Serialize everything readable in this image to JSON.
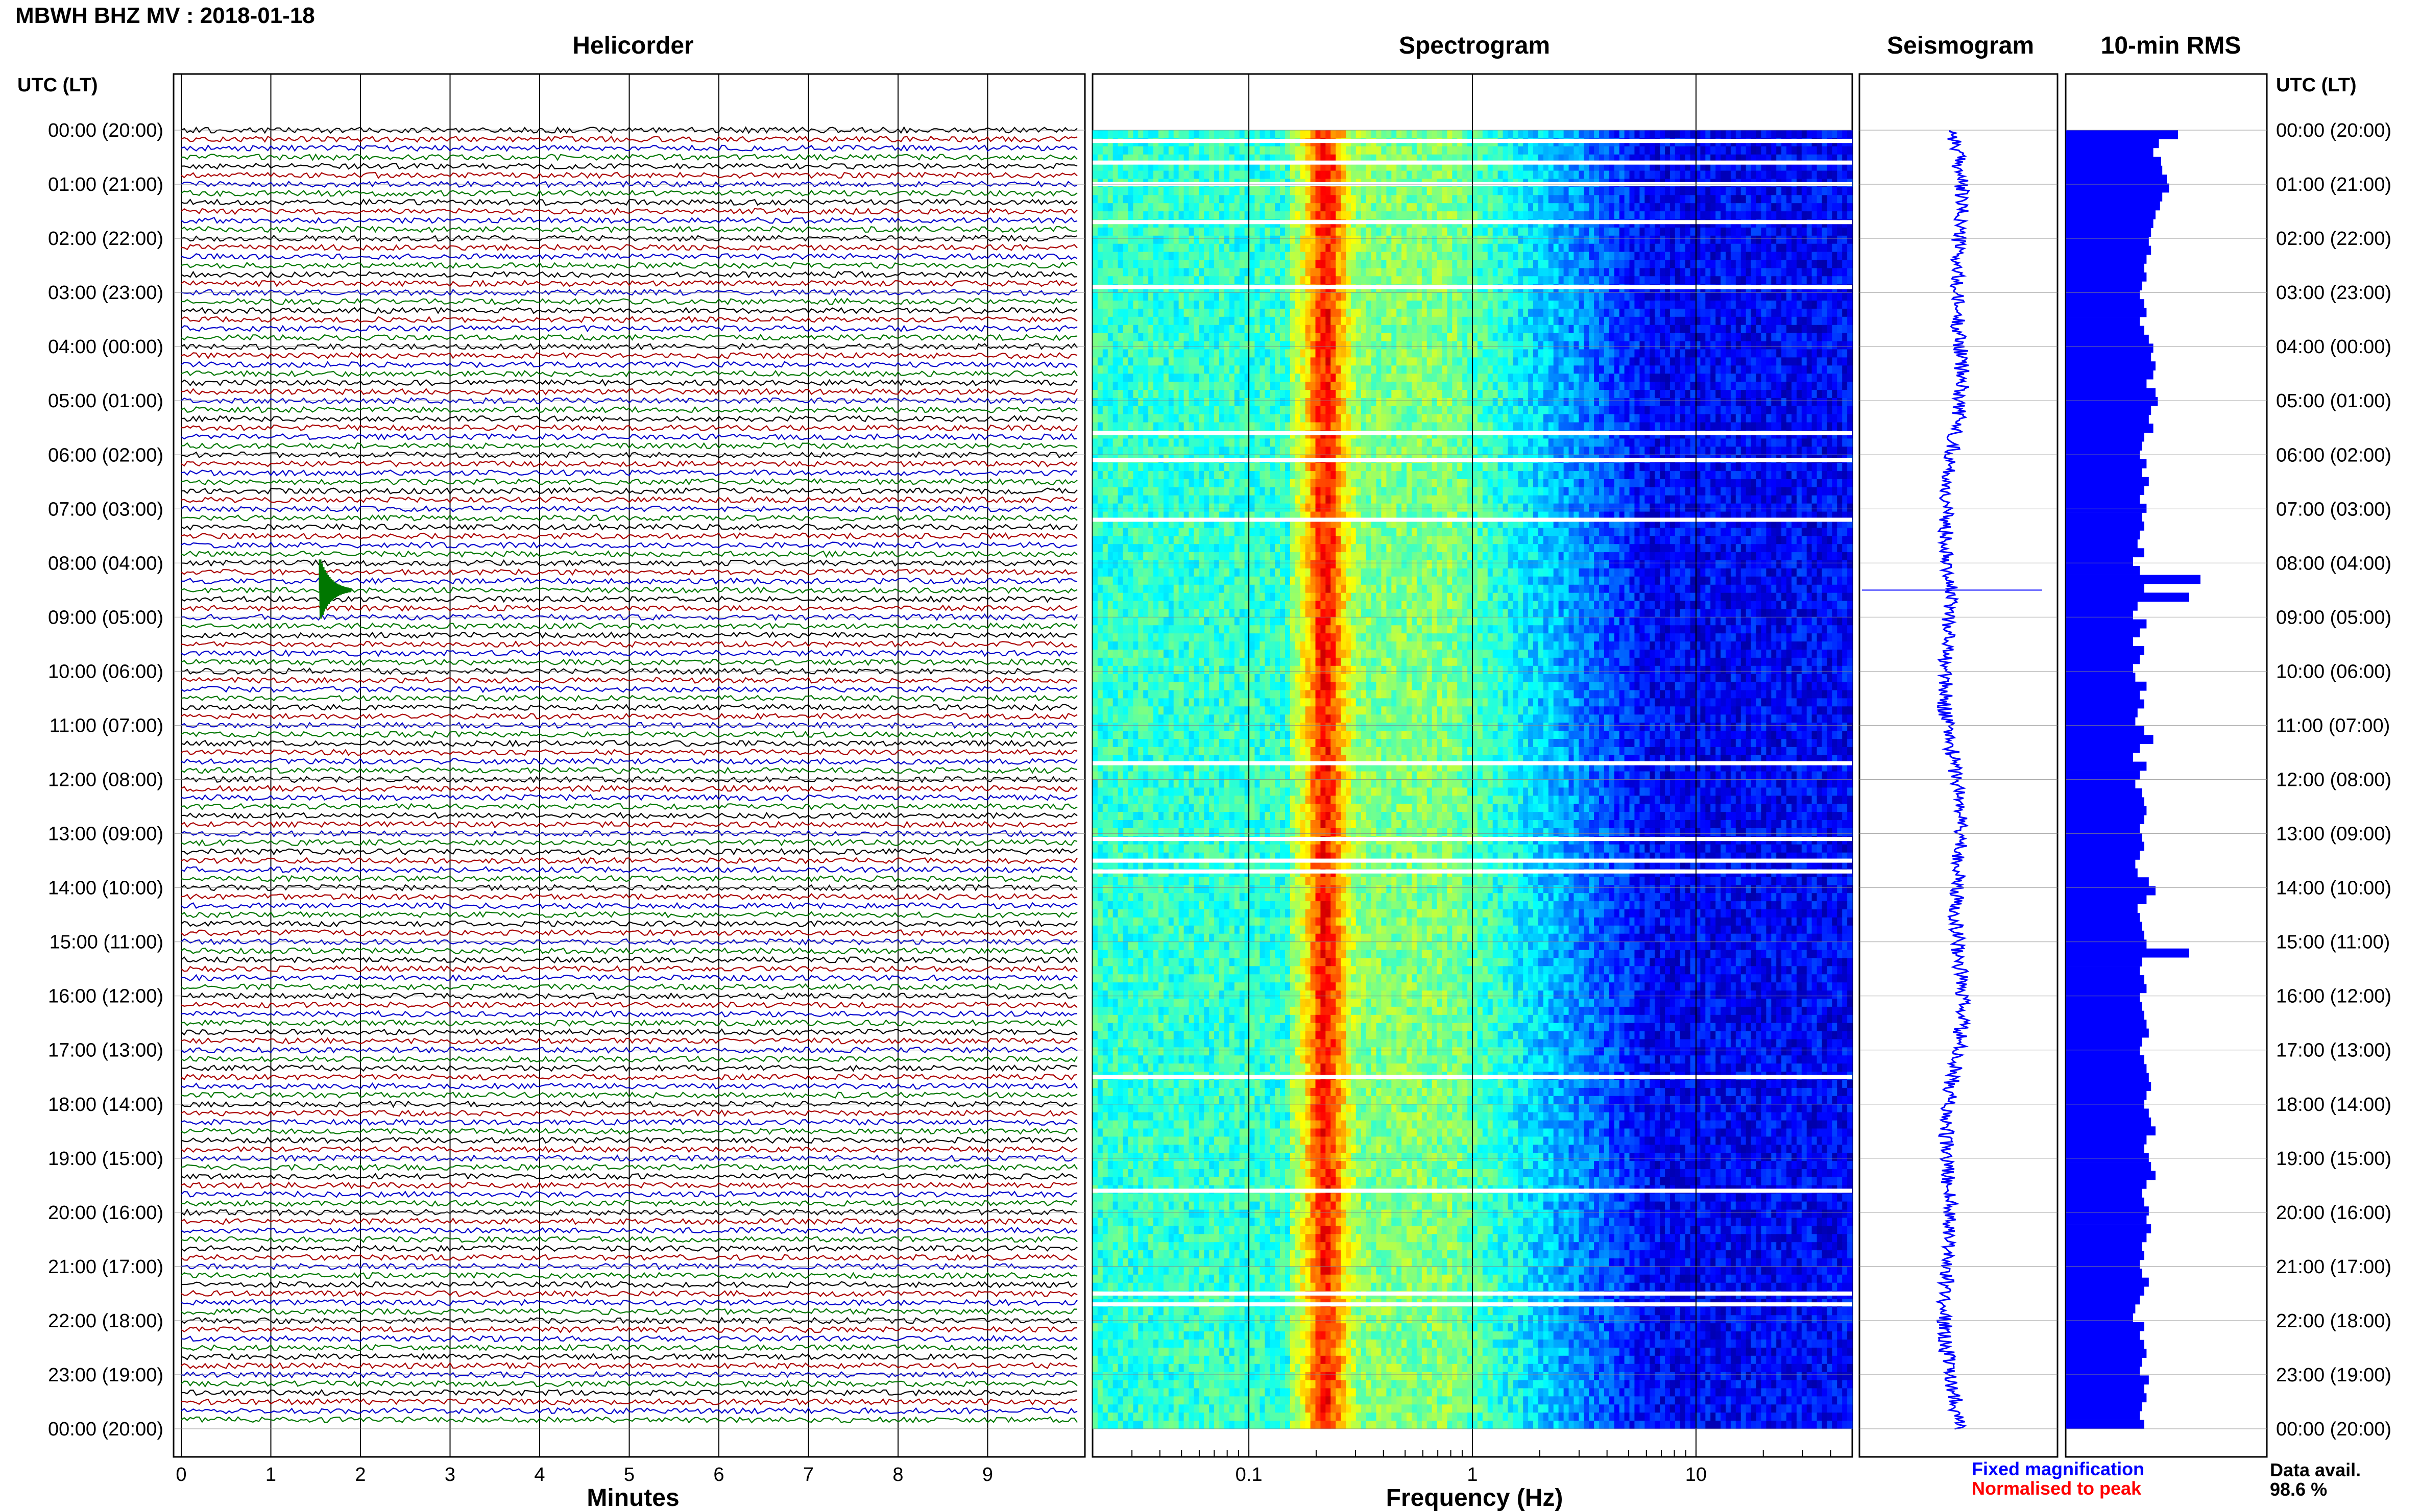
{
  "station_title": "MBWH BHZ MV : 2018-01-18",
  "panels": {
    "helicorder": "Helicorder",
    "spectrogram": "Spectrogram",
    "seismogram": "Seismogram",
    "rms": "10-min RMS"
  },
  "time_axis_label": "UTC (LT)",
  "legend": {
    "fixed": "Fixed magnification",
    "normalised": "Normalised to peak",
    "fixed_color": "#0000ff",
    "normalised_color": "#ff0000"
  },
  "data_avail": {
    "label": "Data avail.",
    "value": "98.6 %"
  },
  "chart_data": [
    {
      "type": "line",
      "title": "Helicorder",
      "xlabel": "Minutes",
      "xticks": [
        "0",
        "1",
        "2",
        "3",
        "4",
        "5",
        "6",
        "7",
        "8",
        "9"
      ],
      "xlim": [
        0,
        10
      ],
      "y_tick_labels": [
        "00:00 (20:00)",
        "01:00 (21:00)",
        "02:00 (22:00)",
        "03:00 (23:00)",
        "04:00 (00:00)",
        "05:00 (01:00)",
        "06:00 (02:00)",
        "07:00 (03:00)",
        "08:00 (04:00)",
        "09:00 (05:00)",
        "10:00 (06:00)",
        "11:00 (07:00)",
        "12:00 (08:00)",
        "13:00 (09:00)",
        "14:00 (10:00)",
        "15:00 (11:00)",
        "16:00 (12:00)",
        "17:00 (13:00)",
        "18:00 (14:00)",
        "19:00 (15:00)",
        "20:00 (16:00)",
        "21:00 (17:00)",
        "22:00 (18:00)",
        "23:00 (19:00)",
        "00:00 (20:00)"
      ],
      "trace_colors": [
        "#000000",
        "#aa0000",
        "#0000cc",
        "#007700"
      ],
      "traces_per_hour": 6,
      "event": {
        "hour": 8.5,
        "minute": 1.55
      }
    },
    {
      "type": "heatmap",
      "title": "Spectrogram",
      "xlabel": "Frequency (Hz)",
      "xscale": "log",
      "xticks": [
        "0.1",
        "1",
        "10"
      ],
      "xlim": [
        0.02,
        50
      ],
      "gap_hours": [
        0.2,
        0.6,
        1.0,
        1.7,
        2.9,
        5.6,
        6.1,
        7.2,
        11.7,
        13.1,
        13.5,
        13.7,
        17.5,
        19.6,
        21.5,
        21.7
      ]
    },
    {
      "type": "line",
      "title": "Seismogram",
      "event_hour": 8.5
    },
    {
      "type": "bar",
      "title": "10-min RMS",
      "values": [
        1.0,
        0.83,
        0.78,
        0.85,
        0.86,
        0.9,
        0.92,
        0.86,
        0.84,
        0.8,
        0.78,
        0.76,
        0.74,
        0.76,
        0.72,
        0.7,
        0.72,
        0.68,
        0.66,
        0.7,
        0.72,
        0.66,
        0.7,
        0.74,
        0.78,
        0.76,
        0.8,
        0.78,
        0.72,
        0.8,
        0.82,
        0.76,
        0.74,
        0.78,
        0.7,
        0.68,
        0.66,
        0.72,
        0.68,
        0.74,
        0.7,
        0.66,
        0.72,
        0.68,
        0.7,
        0.66,
        0.64,
        0.7,
        0.6,
        0.66,
        1.2,
        0.7,
        1.1,
        0.64,
        0.6,
        0.72,
        0.66,
        0.6,
        0.7,
        0.66,
        0.6,
        0.62,
        0.72,
        0.66,
        0.7,
        0.64,
        0.62,
        0.7,
        0.78,
        0.66,
        0.6,
        0.72,
        0.66,
        0.62,
        0.68,
        0.7,
        0.72,
        0.7,
        0.66,
        0.68,
        0.7,
        0.66,
        0.62,
        0.64,
        0.74,
        0.8,
        0.72,
        0.64,
        0.66,
        0.68,
        0.7,
        0.72,
        1.1,
        0.68,
        0.66,
        0.7,
        0.72,
        0.66,
        0.68,
        0.7,
        0.72,
        0.74,
        0.68,
        0.66,
        0.7,
        0.72,
        0.74,
        0.76,
        0.72,
        0.7,
        0.74,
        0.76,
        0.8,
        0.72,
        0.7,
        0.74,
        0.76,
        0.8,
        0.72,
        0.68,
        0.7,
        0.74,
        0.72,
        0.76,
        0.72,
        0.68,
        0.7,
        0.66,
        0.68,
        0.74,
        0.7,
        0.66,
        0.62,
        0.6,
        0.7,
        0.66,
        0.7,
        0.72,
        0.68,
        0.66,
        0.74,
        0.7,
        0.72,
        0.68,
        0.66,
        0.7
      ]
    }
  ]
}
